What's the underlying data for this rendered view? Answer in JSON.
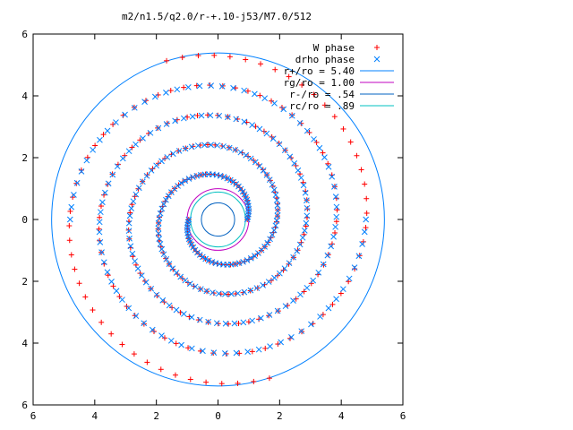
{
  "chart_data": {
    "type": "scatter",
    "title": "m2/n1.5/q2.0/r-+.10-j53/M7.0/512",
    "xlabel": "",
    "ylabel": "",
    "xlim": [
      -6,
      6
    ],
    "ylim": [
      -6,
      6
    ],
    "x_tick_values": [
      -6,
      -4,
      -2,
      0,
      2,
      4,
      6
    ],
    "x_tick_labels": [
      "6",
      "4",
      "2",
      "0",
      "2",
      "4",
      "6"
    ],
    "y_tick_values": [
      6,
      4,
      2,
      0,
      -2,
      -4,
      -6
    ],
    "y_tick_labels": [
      "6",
      "4",
      "2",
      "0",
      "2",
      "4",
      "6"
    ],
    "grid": false,
    "legend_position": "top-right",
    "series": [
      {
        "name": "W phase",
        "marker": "+",
        "color": "#ff0000",
        "arms": [
          {
            "phase": 0.0,
            "r_min": 0.95,
            "r_max": 5.4,
            "turns": 2.3
          },
          {
            "phase": 3.14159,
            "r_min": 0.95,
            "r_max": 5.4,
            "turns": 2.3
          }
        ]
      },
      {
        "name": "drho phase",
        "marker": "x",
        "color": "#0080ff",
        "arms": [
          {
            "phase": 0.0,
            "r_min": 0.95,
            "r_max": 4.8,
            "turns": 2.0
          },
          {
            "phase": 3.14159,
            "r_min": 0.95,
            "r_max": 4.8,
            "turns": 2.0
          }
        ]
      }
    ],
    "circles": [
      {
        "name": "r+/ro = 5.40",
        "r": 5.4,
        "color": "#0080ff"
      },
      {
        "name": "rg/ro = 1.00",
        "r": 1.0,
        "color": "#c000c0"
      },
      {
        "name": "r-/ro = .54",
        "r": 0.54,
        "color": "#0060c0"
      },
      {
        "name": "rc/ro = .89",
        "r": 0.89,
        "color": "#00c0c0"
      }
    ]
  }
}
